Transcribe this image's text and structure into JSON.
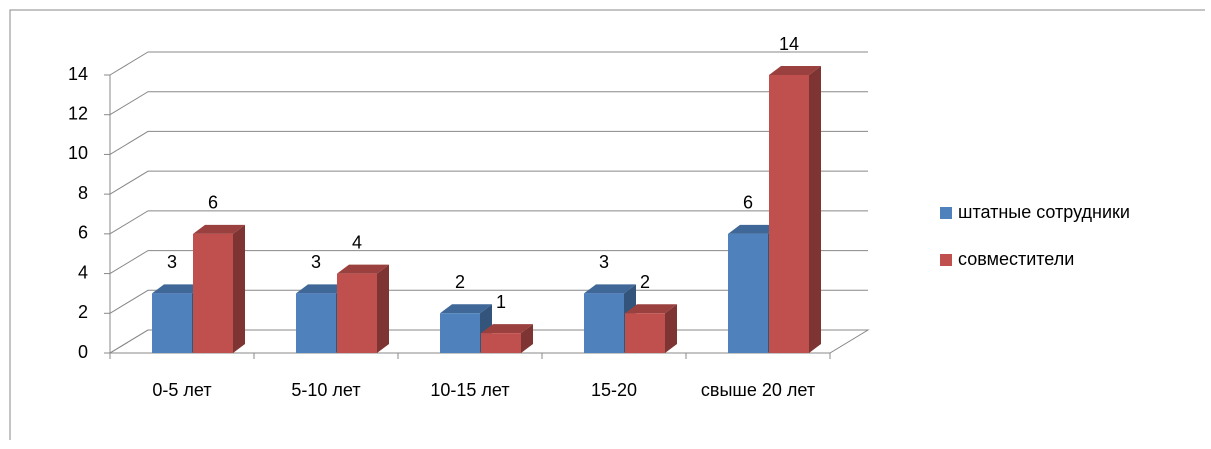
{
  "chart_data": {
    "type": "bar3d",
    "categories": [
      "0-5 лет",
      "5-10 лет",
      "10-15 лет",
      "15-20",
      "свыше 20 лет"
    ],
    "series": [
      {
        "name": "штатные сотрудники",
        "color": "#4f81bd",
        "values": [
          3,
          3,
          2,
          3,
          6
        ]
      },
      {
        "name": "совместители",
        "color": "#c0504d",
        "values": [
          6,
          4,
          1,
          2,
          14
        ]
      }
    ],
    "ylim": [
      0,
      14
    ],
    "yticks": [
      0,
      2,
      4,
      6,
      8,
      10,
      12,
      14
    ],
    "grid": true,
    "legend": "right"
  }
}
